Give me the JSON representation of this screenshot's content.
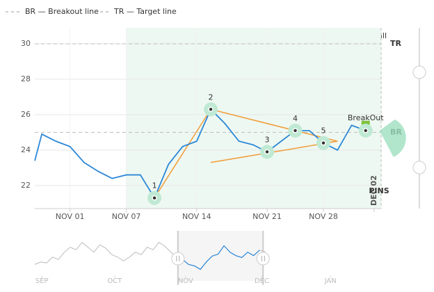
{
  "legend": [
    "BR — Breakout line",
    "TR — Target line"
  ],
  "show_all": "Show all",
  "watermark": "PINS",
  "chart_data": {
    "type": "line",
    "x": [
      -2.5,
      -2,
      -1,
      0,
      1,
      2,
      3,
      4,
      5,
      6,
      7,
      8,
      9,
      10,
      11,
      12,
      13,
      14,
      15,
      16,
      17,
      18,
      19,
      20,
      21
    ],
    "series": [
      {
        "color": "#2b87d8",
        "values": [
          23.4,
          24.9,
          24.5,
          24.2,
          23.3,
          22.8,
          22.4,
          22.6,
          22.6,
          21.3,
          23.2,
          24.2,
          24.5,
          26.3,
          25.5,
          24.5,
          24.3,
          23.9,
          24.5,
          25.1,
          25.1,
          24.4,
          24.0,
          25.4,
          25.1
        ]
      }
    ],
    "xlim": [
      -2.5,
      22.1
    ],
    "ylim": [
      20.7,
      30.9
    ],
    "yticks": [
      22,
      24,
      26,
      28,
      30
    ],
    "xticks": [
      {
        "value": 0,
        "label": "NOV 01"
      },
      {
        "value": 4,
        "label": "NOV 07"
      },
      {
        "value": 9,
        "label": "NOV 14"
      },
      {
        "value": 14,
        "label": "NOV 21"
      },
      {
        "value": 18,
        "label": "NOV 28"
      },
      {
        "value": 21.6,
        "label": "DEC 02"
      }
    ],
    "grid": true,
    "highlight_from": 4,
    "highlight_color": "#eef8f2",
    "levels": [
      {
        "label": "TR",
        "value": 30
      },
      {
        "label": "BR",
        "value": 25
      }
    ],
    "pattern_color": "#f0a040",
    "pattern_points": [
      {
        "label": "1",
        "x": 6,
        "y": 21.3
      },
      {
        "label": "2",
        "x": 10,
        "y": 26.3
      },
      {
        "label": "3",
        "x": 14,
        "y": 23.9
      },
      {
        "label": "4",
        "x": 16,
        "y": 25.1
      },
      {
        "label": "5",
        "x": 18,
        "y": 24.4
      }
    ],
    "pattern_lines": [
      [
        [
          6,
          21.3
        ],
        [
          10,
          26.3
        ]
      ],
      [
        [
          10,
          26.3
        ],
        [
          19,
          24.5
        ]
      ],
      [
        [
          10,
          23.3
        ],
        [
          19,
          24.5
        ]
      ],
      [
        [
          18,
          24.4
        ],
        [
          19,
          24.5
        ]
      ]
    ],
    "breakout": {
      "label": "BreakOut",
      "x": 21,
      "y": 25.1
    }
  },
  "navigator": {
    "values": [
      22.5,
      23,
      22.8,
      24,
      23.5,
      25,
      26,
      25.5,
      27,
      26,
      25,
      26.5,
      25.8,
      24.5,
      24,
      23.2,
      24,
      25,
      24.5,
      26,
      25.5,
      27,
      26.2,
      25,
      24,
      23.5,
      22.5,
      22.2,
      21.5,
      23,
      24.2,
      24.6,
      26.3,
      25,
      24.3,
      23.9,
      25,
      24.3,
      25.4,
      25.1
    ],
    "xlim": [
      0,
      63.5
    ],
    "ylim": [
      20,
      28.5
    ],
    "selected": [
      24.2,
      38.6
    ],
    "xticks": [
      {
        "value": 1.2,
        "label": "SEP"
      },
      {
        "value": 13.5,
        "label": "OCT"
      },
      {
        "value": 25.5,
        "label": "NOV"
      },
      {
        "value": 38.4,
        "label": "DEC"
      },
      {
        "value": 50,
        "label": "JAN"
      }
    ]
  }
}
